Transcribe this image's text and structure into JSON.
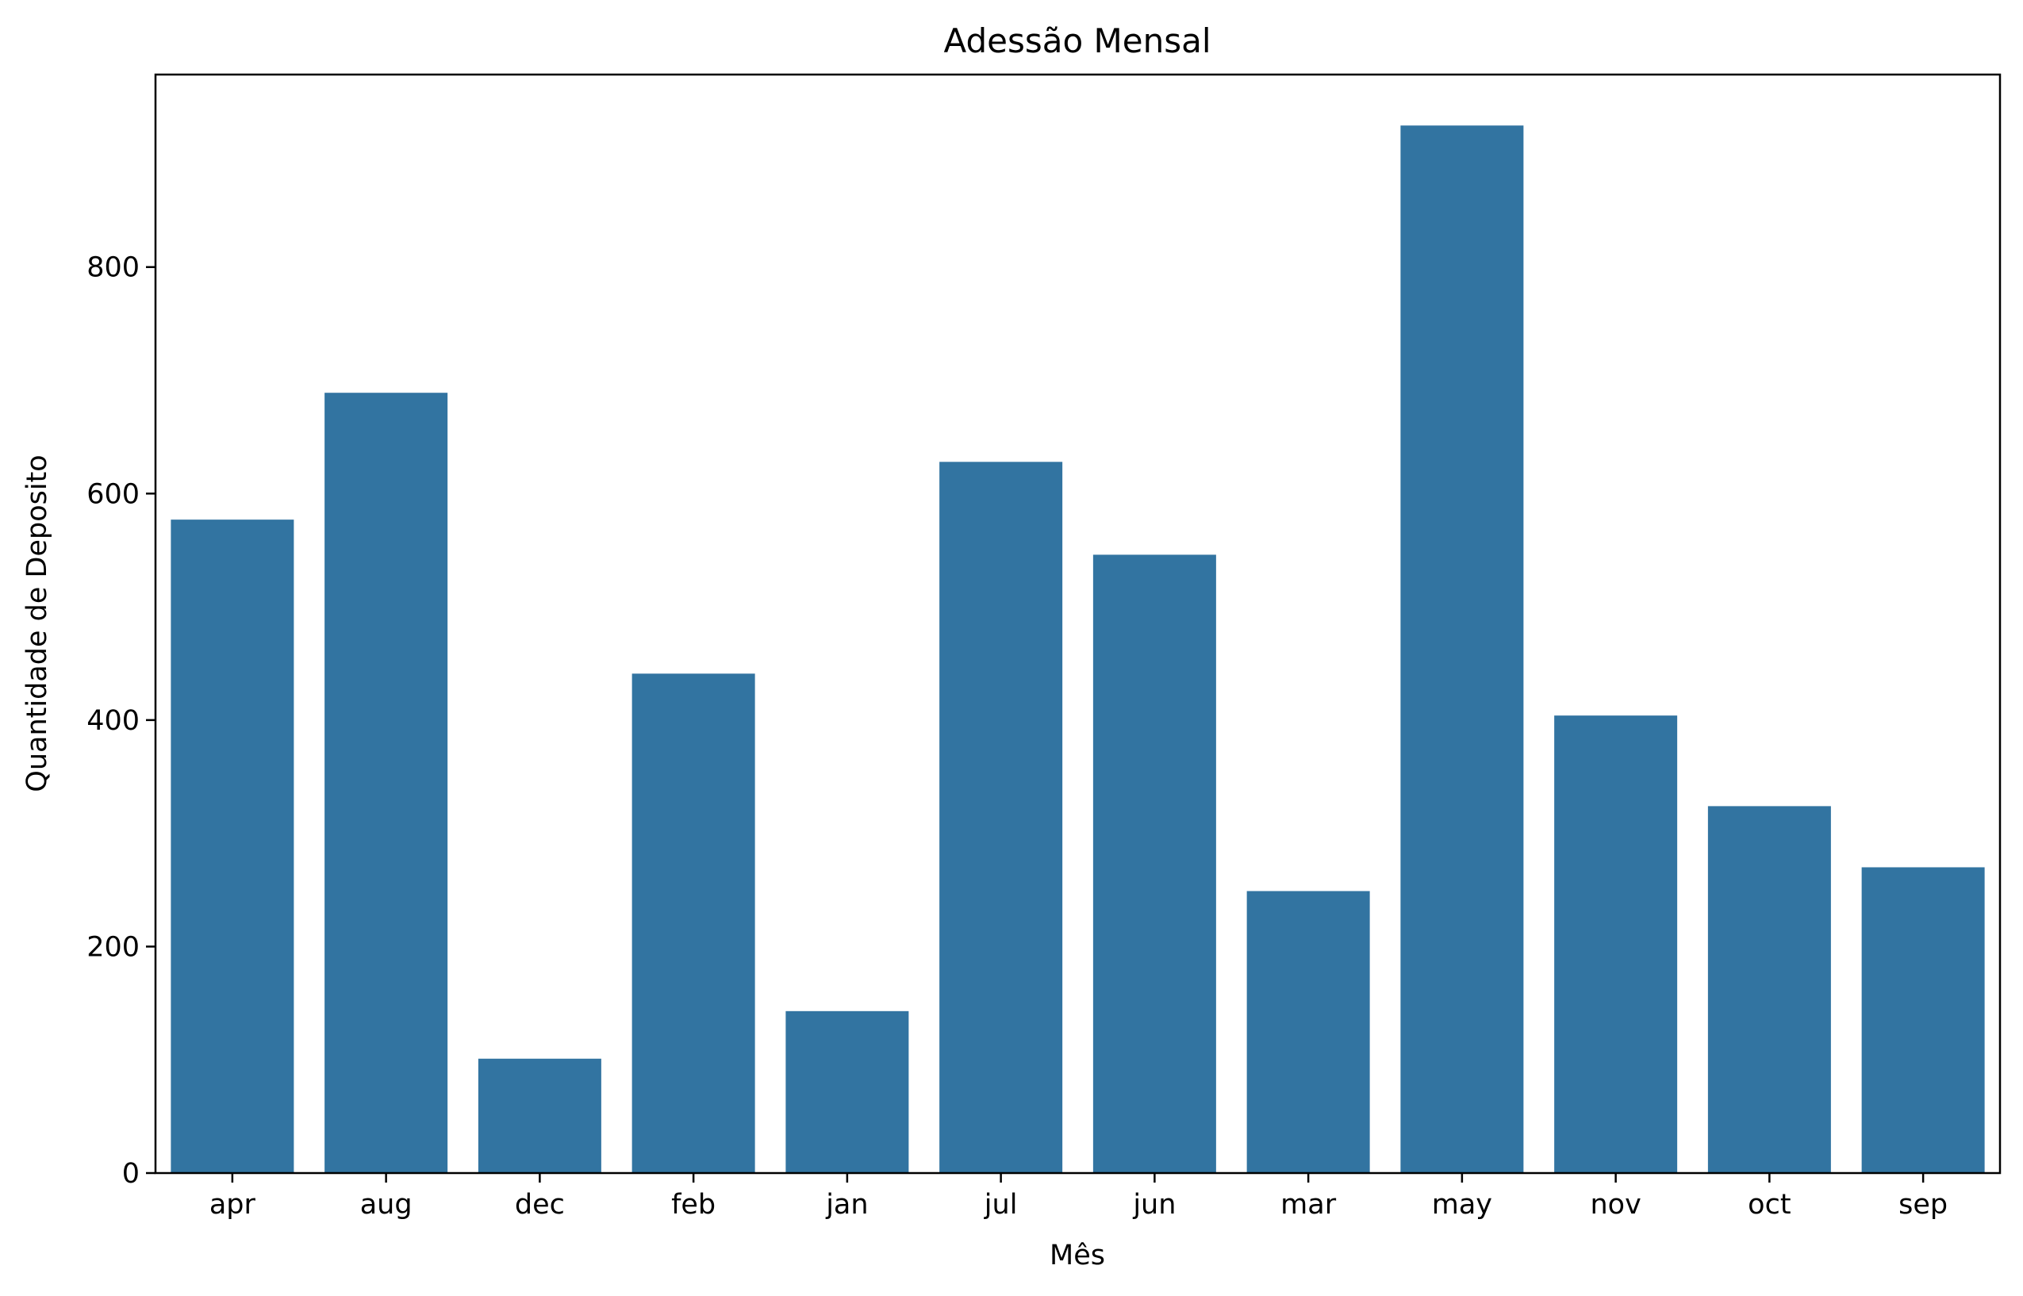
{
  "chart_data": {
    "type": "bar",
    "title": "Adessão Mensal",
    "xlabel": "Mês",
    "ylabel": "Quantidade de Deposito",
    "categories": [
      "apr",
      "aug",
      "dec",
      "feb",
      "jan",
      "jul",
      "jun",
      "mar",
      "may",
      "nov",
      "oct",
      "sep"
    ],
    "values": [
      577,
      689,
      101,
      441,
      143,
      628,
      546,
      249,
      925,
      404,
      324,
      270
    ],
    "ylim": [
      0,
      970
    ],
    "yticks": [
      0,
      200,
      400,
      600,
      800
    ],
    "grid": false,
    "bar_color": "#3274a1"
  }
}
